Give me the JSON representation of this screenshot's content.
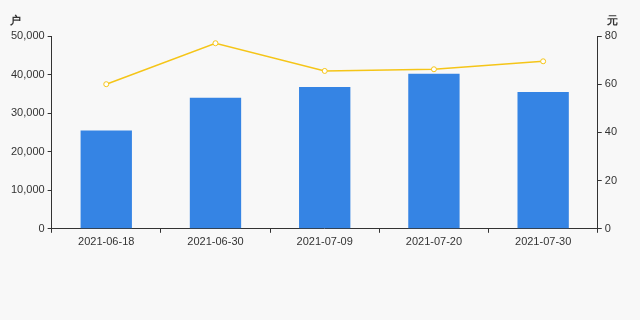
{
  "chart_data": {
    "type": "bar",
    "ylabel": "户",
    "y2label": "元",
    "categories": [
      "2021-06-18",
      "2021-06-30",
      "2021-07-09",
      "2021-07-20",
      "2021-07-30"
    ],
    "series": [
      {
        "name": "户",
        "type": "bar",
        "color": "#3584e4",
        "axis": "y",
        "values": [
          25500,
          34000,
          36800,
          40200,
          35500
        ]
      },
      {
        "name": "元",
        "type": "line",
        "color": "#f5c518",
        "axis": "y2",
        "marker": "circle",
        "values": [
          60,
          77,
          65.5,
          66.2,
          69.5
        ]
      }
    ],
    "ylim": [
      0,
      50000
    ],
    "yticks": [
      0,
      {
        "value": 10000,
        "label": "10,000"
      },
      {
        "value": 20000,
        "label": "20,000"
      },
      {
        "value": 30000,
        "label": "30,000"
      },
      {
        "value": 40000,
        "label": "40,000"
      },
      {
        "value": 50000,
        "label": "50,000"
      }
    ],
    "y2lim": [
      0,
      80
    ],
    "y2ticks": [
      0,
      20,
      40,
      60,
      80
    ],
    "grid": false
  }
}
